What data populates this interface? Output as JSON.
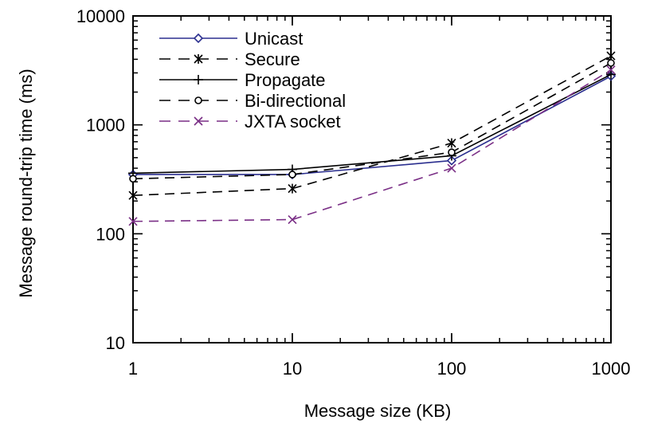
{
  "chart_data": {
    "type": "line",
    "xlabel": "Message size (KB)",
    "ylabel": "Message round-trip time (ms)",
    "x_scale": "log",
    "y_scale": "log",
    "xlim": [
      1,
      1000
    ],
    "ylim": [
      10,
      10000
    ],
    "x_ticks": [
      "1",
      "10",
      "100",
      "1000"
    ],
    "y_ticks": [
      "10",
      "100",
      "1000",
      "10000"
    ],
    "legend_position": "top-left",
    "grid": false,
    "x": [
      1,
      10,
      100,
      1000
    ],
    "series": [
      {
        "name": "Unicast",
        "values": [
          350,
          350,
          470,
          2800
        ],
        "color": "#2b2f8f",
        "dash": "solid",
        "marker": "diamond"
      },
      {
        "name": "Secure",
        "values": [
          225,
          260,
          680,
          4300
        ],
        "color": "#000000",
        "dash": "dashed",
        "marker": "asterisk"
      },
      {
        "name": "Propagate",
        "values": [
          360,
          390,
          520,
          2900
        ],
        "color": "#000000",
        "dash": "solid",
        "marker": "plus"
      },
      {
        "name": "Bi-directional",
        "values": [
          320,
          350,
          560,
          3700
        ],
        "color": "#000000",
        "dash": "dashed",
        "marker": "circle"
      },
      {
        "name": "JXTA socket",
        "values": [
          130,
          135,
          400,
          3200
        ],
        "color": "#7a2f86",
        "dash": "dashed",
        "marker": "x"
      }
    ]
  }
}
